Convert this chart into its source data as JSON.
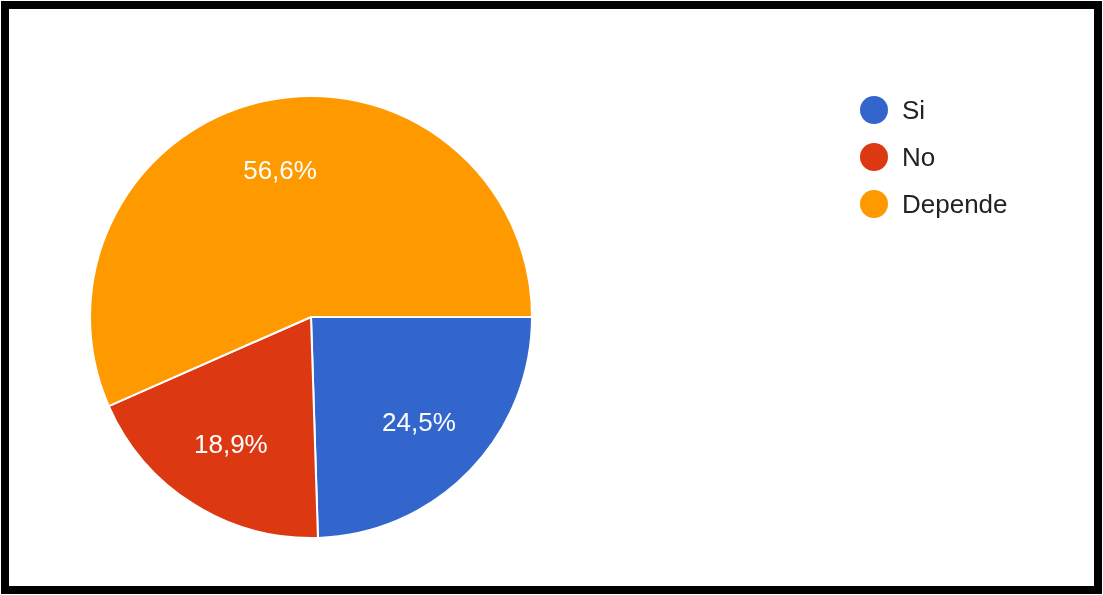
{
  "chart_data": {
    "type": "pie",
    "categories": [
      "Si",
      "No",
      "Depende"
    ],
    "values": [
      24.5,
      18.9,
      56.6
    ],
    "colors": [
      "#3366cc",
      "#dc3912",
      "#ff9900"
    ],
    "value_labels": [
      "24,5%",
      "18,9%",
      "56,6%"
    ],
    "legend": "top right"
  }
}
